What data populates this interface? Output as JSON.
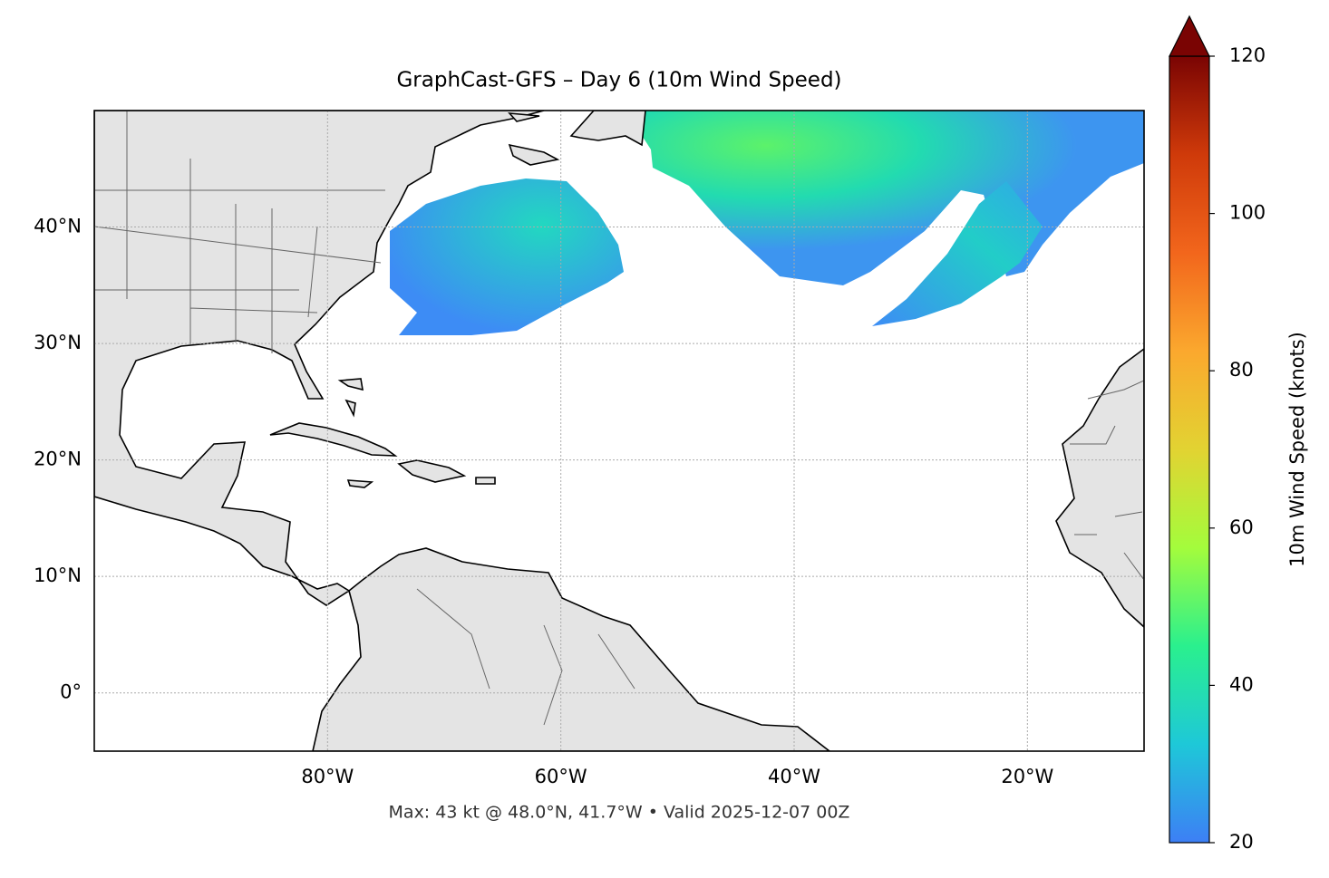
{
  "chart_data": {
    "type": "map",
    "title": "GraphCast-GFS – Day 6 (10m Wind Speed)",
    "annotation": "Max: 43 kt @ 48.0°N, 41.7°W • Valid 2025-12-07 00Z",
    "xlim": [
      -100,
      -10
    ],
    "ylim": [
      -5,
      50
    ],
    "xticks": [
      {
        "value": -80,
        "label": "80°W"
      },
      {
        "value": -60,
        "label": "60°W"
      },
      {
        "value": -40,
        "label": "40°W"
      },
      {
        "value": -20,
        "label": "20°W"
      }
    ],
    "yticks": [
      {
        "value": 0,
        "label": "0°"
      },
      {
        "value": 10,
        "label": "10°N"
      },
      {
        "value": 20,
        "label": "20°N"
      },
      {
        "value": 30,
        "label": "30°N"
      },
      {
        "value": 40,
        "label": "40°N"
      }
    ],
    "grid": true,
    "colorbar": {
      "label": "10m Wind Speed (knots)",
      "lim": [
        20,
        120
      ],
      "ticks": [
        20,
        40,
        60,
        80,
        100,
        120
      ],
      "extend": "max",
      "colors": [
        "#3d7ff5",
        "#1ec8d8",
        "#2af08e",
        "#a4fc3c",
        "#e2d332",
        "#fba82e",
        "#f2661c",
        "#cf3a0a",
        "#7a0403"
      ]
    }
  }
}
